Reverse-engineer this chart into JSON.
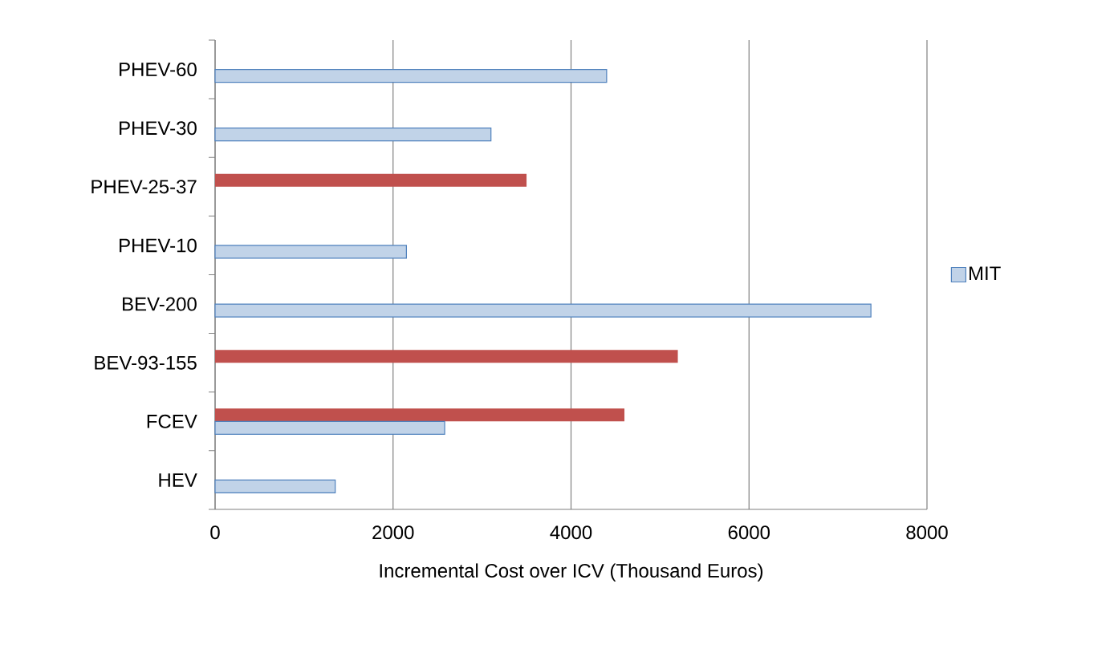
{
  "chart_data": {
    "type": "bar",
    "orientation": "horizontal",
    "xlabel": "Incremental Cost over ICV (Thousand Euros)",
    "categories": [
      "PHEV-60",
      "PHEV-30",
      "PHEV-25-37",
      "PHEV-10",
      "BEV-200",
      "BEV-93-155",
      "FCEV",
      "HEV"
    ],
    "series": [
      {
        "color": "#c0504d",
        "values": [
          null,
          null,
          3500,
          null,
          null,
          5200,
          4600,
          null
        ]
      },
      {
        "name": "MIT",
        "color": "#4f81bd",
        "values": [
          4400,
          3100,
          null,
          2150,
          7370,
          null,
          2580,
          1350
        ]
      }
    ],
    "xlim": [
      0,
      8000
    ],
    "xticks": [
      0,
      2000,
      4000,
      6000,
      8000
    ],
    "grid": "x",
    "legend": "right"
  }
}
